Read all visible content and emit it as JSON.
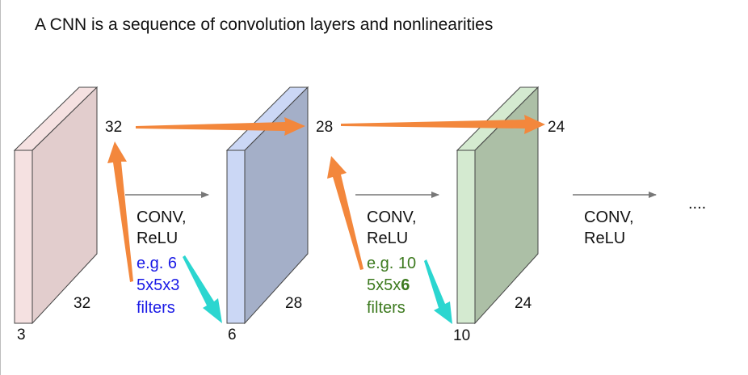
{
  "title": "A CNN is a sequence of convolution layers and nonlinearities",
  "volumes": [
    {
      "height": "32",
      "width": "32",
      "depth": "3"
    },
    {
      "height": "28",
      "width": "28",
      "depth": "6"
    },
    {
      "height": "24",
      "width": "24",
      "depth": "10"
    }
  ],
  "ops": [
    {
      "line1": "CONV,",
      "line2": "ReLU",
      "note_line1": "e.g. 6",
      "note_line2": "5x5x3",
      "note_line3": "filters"
    },
    {
      "line1": "CONV,",
      "line2": "ReLU",
      "note_line1": "e.g. 10",
      "note_line2_a": "5x5x",
      "note_line2_b": "6",
      "note_line3": "filters"
    },
    {
      "line1": "CONV,",
      "line2": "ReLU"
    }
  ],
  "ellipsis": "....",
  "colors": {
    "volume1_face": "#e2cdcd",
    "volume1_side": "#f5e1e1",
    "volume2_face": "#a4afc8",
    "volume2_side": "#cbd7f5",
    "volume3_face": "#acbfa6",
    "volume3_side": "#d4ead0",
    "spatial_arrow": "#f3873c",
    "depth_arrow": "#2bd6d0",
    "note_blue": "#1a1ae6",
    "note_green": "#3d7a1f"
  }
}
